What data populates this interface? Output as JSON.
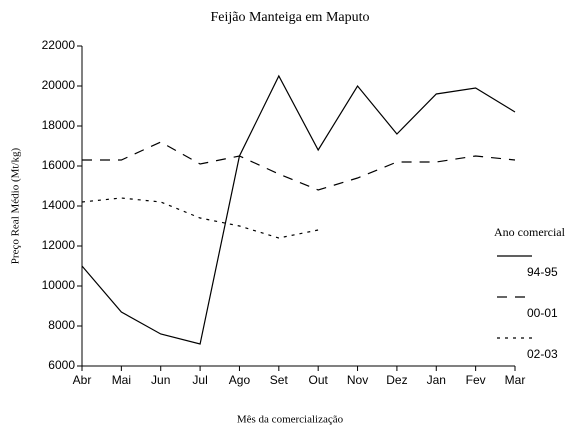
{
  "chart_data": {
    "type": "line",
    "title": "Feijão Manteiga em Maputo",
    "x_label": "Mês da comercialização",
    "y_label": "Preço Real Médio (Mt/kg)",
    "legend_title": "Ano comercial",
    "categories": [
      "Abr",
      "Mai",
      "Jun",
      "Jul",
      "Ago",
      "Set",
      "Out",
      "Nov",
      "Dez",
      "Jan",
      "Fev",
      "Mar"
    ],
    "series": [
      {
        "name": "94-95",
        "color": "#000000",
        "dash": "solid",
        "values": [
          11000,
          8700,
          7600,
          7100,
          16500,
          20500,
          16800,
          20000,
          17600,
          19600,
          19900,
          18700
        ]
      },
      {
        "name": "00-01",
        "color": "#000000",
        "dash": "dashed",
        "values": [
          16300,
          16300,
          17200,
          16100,
          16500,
          15600,
          14800,
          15400,
          16200,
          16200,
          16500,
          16300
        ]
      },
      {
        "name": "02-03",
        "color": "#000000",
        "dash": "dotted",
        "values": [
          14200,
          14400,
          14200,
          13400,
          13000,
          12400,
          12800,
          null,
          null,
          null,
          null,
          null
        ]
      }
    ],
    "ylim": [
      6000,
      22000
    ],
    "yticks": [
      6000,
      8000,
      10000,
      12000,
      14000,
      16000,
      18000,
      20000,
      22000
    ],
    "grid": false,
    "legend": "right"
  }
}
